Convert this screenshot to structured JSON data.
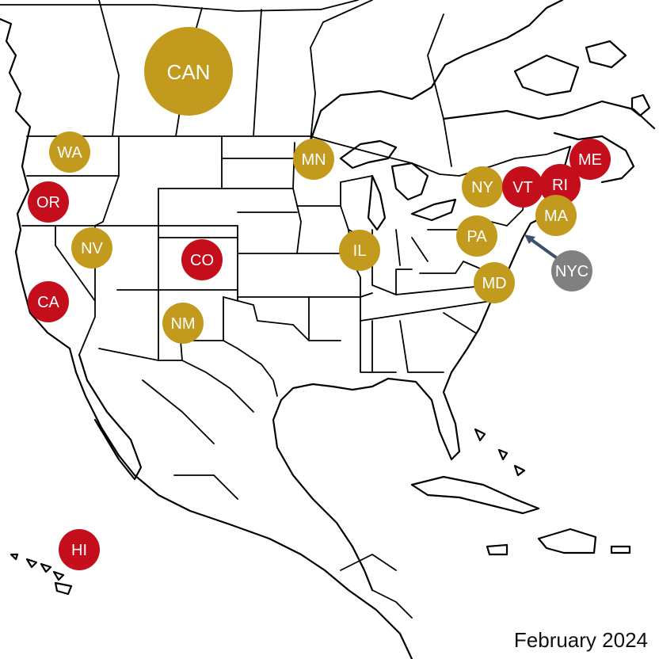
{
  "title": "February 2024",
  "colors": {
    "gold": "#C29A1E",
    "red": "#C40E1C",
    "gray": "#808080",
    "arrow": "#3E4E6E"
  },
  "markers": [
    {
      "label": "CAN",
      "color": "gold"
    },
    {
      "label": "WA",
      "color": "gold"
    },
    {
      "label": "OR",
      "color": "red"
    },
    {
      "label": "NV",
      "color": "gold"
    },
    {
      "label": "CA",
      "color": "red"
    },
    {
      "label": "CO",
      "color": "red"
    },
    {
      "label": "NM",
      "color": "gold"
    },
    {
      "label": "MN",
      "color": "gold"
    },
    {
      "label": "IL",
      "color": "gold"
    },
    {
      "label": "NY",
      "color": "gold"
    },
    {
      "label": "VT",
      "color": "red"
    },
    {
      "label": "RI",
      "color": "red"
    },
    {
      "label": "ME",
      "color": "red"
    },
    {
      "label": "MA",
      "color": "gold"
    },
    {
      "label": "PA",
      "color": "gold"
    },
    {
      "label": "MD",
      "color": "gold"
    },
    {
      "label": "NYC",
      "color": "gray"
    },
    {
      "label": "HI",
      "color": "red"
    }
  ]
}
